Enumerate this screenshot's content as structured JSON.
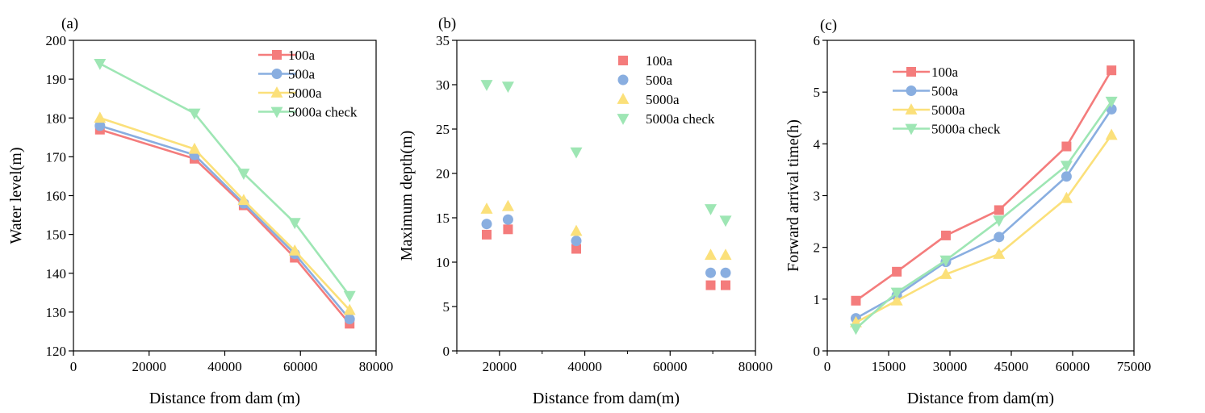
{
  "colors": {
    "100a": "#f47c7c",
    "500a": "#89aee0",
    "5000a": "#fbe07a",
    "5000a check": "#9ee6b4"
  },
  "chart_data": [
    {
      "panel": "(a)",
      "type": "line",
      "xlabel": "Distance from dam (m)",
      "ylabel": "Water level(m)",
      "xlim": [
        0,
        80000
      ],
      "ylim": [
        120,
        200
      ],
      "xticks": [
        0,
        20000,
        40000,
        60000,
        80000
      ],
      "yticks": [
        120,
        130,
        140,
        150,
        160,
        170,
        180,
        190,
        200
      ],
      "legend": "top-right",
      "series": [
        {
          "name": "100a",
          "marker": "square",
          "x": [
            7000,
            32000,
            45000,
            58500,
            73000
          ],
          "y": [
            177,
            169.5,
            157.5,
            144,
            127
          ]
        },
        {
          "name": "500a",
          "marker": "circle",
          "x": [
            7000,
            32000,
            45000,
            58500,
            73000
          ],
          "y": [
            178,
            170.5,
            158,
            145,
            128.2
          ]
        },
        {
          "name": "5000a",
          "marker": "triangle-up",
          "x": [
            7000,
            32000,
            45000,
            58500,
            73000
          ],
          "y": [
            180,
            172,
            158.8,
            145.8,
            130.5
          ]
        },
        {
          "name": "5000a check",
          "marker": "triangle-down",
          "x": [
            7000,
            32000,
            45000,
            58500,
            73000
          ],
          "y": [
            194,
            181.2,
            165.7,
            153,
            134.2
          ]
        }
      ]
    },
    {
      "panel": "(b)",
      "type": "scatter",
      "xlabel": "Distance from dam(m)",
      "ylabel": "Maximum depth(m)",
      "xlim": [
        10000,
        80000
      ],
      "ylim": [
        0,
        35
      ],
      "xticks": [
        20000,
        40000,
        60000,
        80000
      ],
      "minor_xticks": [
        10000,
        30000,
        50000,
        70000
      ],
      "yticks": [
        0,
        5,
        10,
        15,
        20,
        25,
        30,
        35
      ],
      "legend": "top-right",
      "series": [
        {
          "name": "100a",
          "marker": "square",
          "x": [
            17000,
            22000,
            38000,
            69500,
            73000
          ],
          "y": [
            13.1,
            13.7,
            11.5,
            7.4,
            7.4
          ]
        },
        {
          "name": "500a",
          "marker": "circle",
          "x": [
            17000,
            22000,
            38000,
            69500,
            73000
          ],
          "y": [
            14.3,
            14.8,
            12.4,
            8.8,
            8.8
          ]
        },
        {
          "name": "5000a",
          "marker": "triangle-up",
          "x": [
            17000,
            22000,
            38000,
            69500,
            73000
          ],
          "y": [
            16,
            16.3,
            13.5,
            10.8,
            10.8
          ]
        },
        {
          "name": "5000a check",
          "marker": "triangle-down",
          "x": [
            17000,
            22000,
            38000,
            69500,
            73000
          ],
          "y": [
            30,
            29.8,
            22.4,
            16,
            14.7
          ]
        }
      ]
    },
    {
      "panel": "(c)",
      "type": "line",
      "xlabel": "Distance from dam(m)",
      "ylabel": "Forward arrival time(h)",
      "xlim": [
        0,
        75000
      ],
      "ylim": [
        0,
        6
      ],
      "xticks": [
        0,
        15000,
        30000,
        45000,
        60000,
        75000
      ],
      "yticks": [
        0,
        1,
        2,
        3,
        4,
        5,
        6
      ],
      "legend": "top-left",
      "series": [
        {
          "name": "100a",
          "marker": "square",
          "x": [
            7000,
            17000,
            29000,
            42000,
            58500,
            69500
          ],
          "y": [
            0.97,
            1.53,
            2.23,
            2.72,
            3.95,
            5.42
          ]
        },
        {
          "name": "500a",
          "marker": "circle",
          "x": [
            7000,
            17000,
            29000,
            42000,
            58500,
            69500
          ],
          "y": [
            0.63,
            1.07,
            1.72,
            2.2,
            3.37,
            4.67
          ]
        },
        {
          "name": "5000a",
          "marker": "triangle-up",
          "x": [
            7000,
            17000,
            29000,
            42000,
            58500,
            69500
          ],
          "y": [
            0.55,
            0.97,
            1.48,
            1.87,
            2.95,
            4.17
          ]
        },
        {
          "name": "5000a check",
          "marker": "triangle-down",
          "x": [
            7000,
            17000,
            29000,
            42000,
            58500,
            69500
          ],
          "y": [
            0.43,
            1.13,
            1.75,
            2.52,
            3.58,
            4.82
          ]
        }
      ]
    }
  ]
}
